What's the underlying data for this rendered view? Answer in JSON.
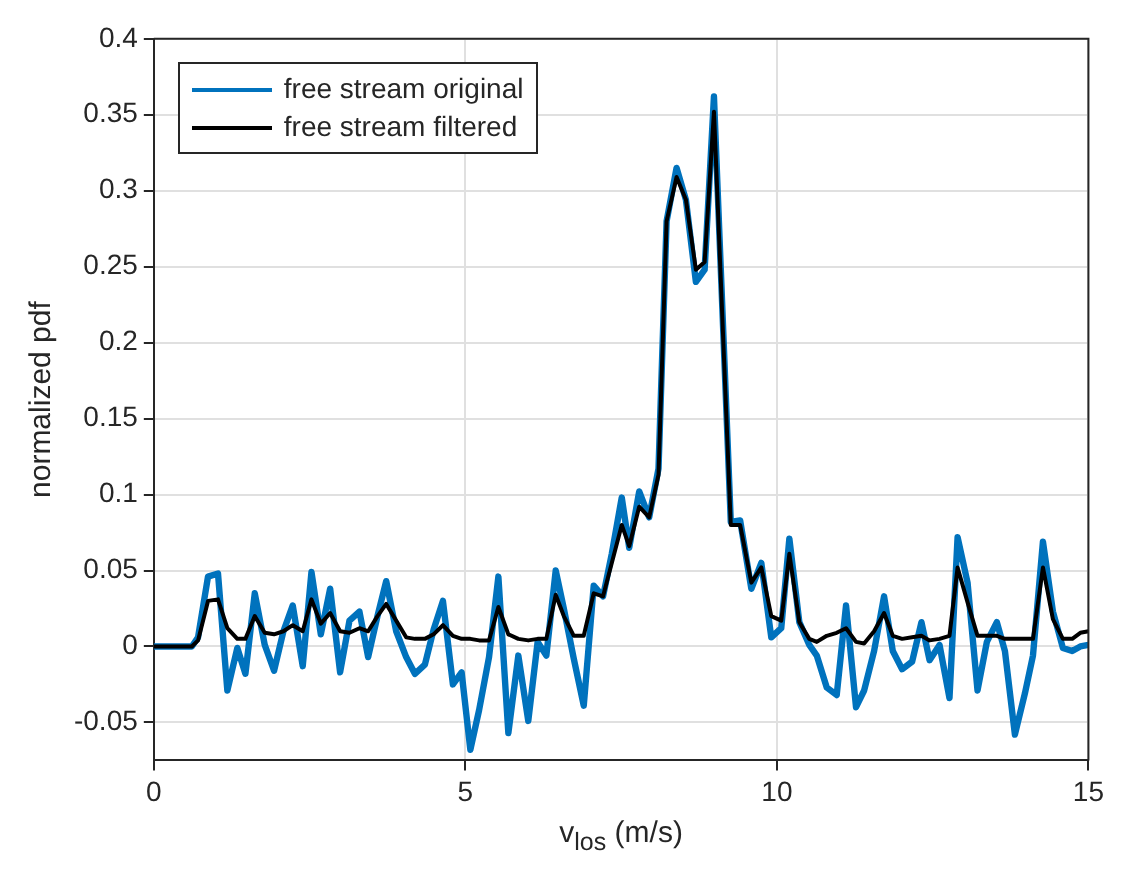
{
  "chart_data": {
    "type": "line",
    "xlabel": "v$_{los}$ (m/s)",
    "ylabel": "normalized pdf",
    "xlim": [
      0,
      15
    ],
    "xticks": [
      0,
      5,
      10,
      15
    ],
    "ylim": [
      -0.075,
      0.4
    ],
    "yticks": [
      -0.05,
      0,
      0.05,
      0.1,
      0.15,
      0.2,
      0.25,
      0.3,
      0.35,
      0.4
    ],
    "grid": true,
    "legend": "top left",
    "line_style": "solid",
    "marker": "none",
    "series": [
      {
        "name": "free stream original",
        "color": "#0072bd",
        "x": [
          0,
          0.61,
          0.71,
          0.87,
          1.03,
          1.18,
          1.34,
          1.47,
          1.62,
          1.78,
          1.93,
          2.08,
          2.23,
          2.39,
          2.53,
          2.68,
          2.83,
          2.99,
          3.14,
          3.3,
          3.44,
          3.59,
          3.73,
          3.89,
          4.05,
          4.19,
          4.35,
          4.49,
          4.64,
          4.8,
          4.94,
          5.08,
          5.22,
          5.38,
          5.53,
          5.69,
          5.85,
          6.01,
          6.16,
          6.3,
          6.45,
          6.58,
          6.74,
          6.9,
          7.06,
          7.21,
          7.35,
          7.51,
          7.63,
          7.79,
          7.95,
          8.1,
          8.23,
          8.39,
          8.54,
          8.7,
          8.84,
          8.99,
          9.26,
          9.41,
          9.59,
          9.75,
          9.91,
          10.07,
          10.2,
          10.36,
          10.52,
          10.64,
          10.8,
          10.96,
          11.11,
          11.27,
          11.4,
          11.56,
          11.72,
          11.86,
          12.01,
          12.17,
          12.32,
          12.45,
          12.61,
          12.77,
          12.9,
          13.06,
          13.22,
          13.37,
          13.53,
          13.66,
          13.82,
          13.98,
          14.11,
          14.27,
          14.43,
          14.59,
          14.74,
          14.87,
          15
        ],
        "values": [
          0,
          0,
          0.006,
          0.046,
          0.048,
          -0.029,
          -0.001,
          -0.018,
          0.035,
          0.001,
          -0.016,
          0.01,
          0.027,
          -0.013,
          0.049,
          0.008,
          0.038,
          -0.017,
          0.017,
          0.023,
          -0.007,
          0.02,
          0.043,
          0.01,
          -0.007,
          -0.018,
          -0.012,
          0.011,
          0.03,
          -0.025,
          -0.017,
          -0.068,
          -0.042,
          -0.007,
          0.046,
          -0.057,
          -0.006,
          -0.049,
          0.003,
          -0.006,
          0.05,
          0.025,
          -0.008,
          -0.039,
          0.04,
          0.033,
          0.061,
          0.098,
          0.065,
          0.102,
          0.085,
          0.117,
          0.28,
          0.315,
          0.294,
          0.24,
          0.248,
          0.362,
          0.082,
          0.083,
          0.038,
          0.055,
          0.006,
          0.012,
          0.071,
          0.016,
          0.001,
          -0.006,
          -0.027,
          -0.032,
          0.027,
          -0.04,
          -0.029,
          -0.003,
          0.033,
          -0.003,
          -0.015,
          -0.01,
          0.016,
          -0.009,
          0.001,
          -0.034,
          0.072,
          0.042,
          -0.029,
          0.003,
          0.016,
          -0.003,
          -0.058,
          -0.031,
          -0.006,
          0.069,
          0.023,
          -0.001,
          -0.003,
          0,
          0.001
        ]
      },
      {
        "name": "free stream filtered",
        "color": "#000000",
        "x": [
          0,
          0.61,
          0.71,
          0.87,
          1.03,
          1.18,
          1.34,
          1.47,
          1.62,
          1.78,
          1.93,
          2.08,
          2.23,
          2.39,
          2.53,
          2.68,
          2.83,
          2.99,
          3.14,
          3.3,
          3.44,
          3.59,
          3.73,
          3.89,
          4.05,
          4.19,
          4.35,
          4.49,
          4.64,
          4.8,
          4.94,
          5.08,
          5.22,
          5.38,
          5.53,
          5.69,
          5.85,
          6.01,
          6.16,
          6.3,
          6.45,
          6.58,
          6.74,
          6.9,
          7.06,
          7.21,
          7.35,
          7.51,
          7.63,
          7.79,
          7.95,
          8.1,
          8.23,
          8.39,
          8.54,
          8.7,
          8.84,
          8.99,
          9.26,
          9.41,
          9.59,
          9.75,
          9.91,
          10.07,
          10.2,
          10.36,
          10.52,
          10.64,
          10.8,
          10.96,
          11.11,
          11.27,
          11.4,
          11.56,
          11.72,
          11.86,
          12.01,
          12.17,
          12.32,
          12.45,
          12.61,
          12.77,
          12.9,
          13.06,
          13.22,
          13.37,
          13.53,
          13.66,
          13.82,
          13.98,
          14.11,
          14.27,
          14.43,
          14.59,
          14.74,
          14.87,
          15
        ],
        "values": [
          0,
          0,
          0.004,
          0.03,
          0.031,
          0.012,
          0.005,
          0.005,
          0.02,
          0.009,
          0.008,
          0.01,
          0.014,
          0.01,
          0.031,
          0.015,
          0.022,
          0.01,
          0.009,
          0.012,
          0.01,
          0.02,
          0.028,
          0.017,
          0.006,
          0.005,
          0.005,
          0.008,
          0.014,
          0.007,
          0.005,
          0.005,
          0.004,
          0.004,
          0.026,
          0.008,
          0.005,
          0.004,
          0.005,
          0.005,
          0.034,
          0.02,
          0.007,
          0.007,
          0.035,
          0.033,
          0.055,
          0.08,
          0.066,
          0.092,
          0.085,
          0.113,
          0.28,
          0.309,
          0.294,
          0.248,
          0.253,
          0.352,
          0.08,
          0.08,
          0.042,
          0.052,
          0.02,
          0.017,
          0.061,
          0.016,
          0.005,
          0.003,
          0.007,
          0.009,
          0.012,
          0.003,
          0.002,
          0.01,
          0.022,
          0.007,
          0.005,
          0.006,
          0.007,
          0.004,
          0.005,
          0.007,
          0.052,
          0.029,
          0.007,
          0.007,
          0.007,
          0.005,
          0.005,
          0.005,
          0.005,
          0.052,
          0.018,
          0.005,
          0.005,
          0.009,
          0.01
        ]
      }
    ]
  }
}
